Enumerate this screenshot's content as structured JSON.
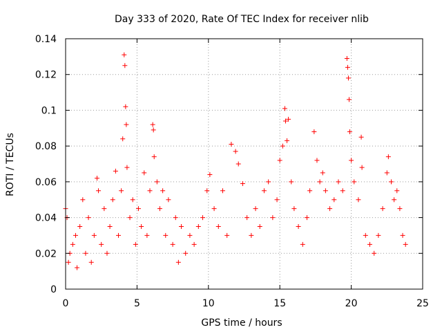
{
  "chart_data": {
    "type": "scatter",
    "title": "Day 333 of 2020, Rate Of TEC Index for receiver nlib",
    "xlabel": "GPS time / hours",
    "ylabel": "ROTI / TECUs",
    "xlim": [
      0,
      25
    ],
    "ylim": [
      0,
      0.14
    ],
    "xticks": [
      0,
      5,
      10,
      15,
      20,
      25
    ],
    "xtick_labels": [
      "0",
      "5",
      "10",
      "15",
      "20",
      "25"
    ],
    "yticks": [
      0,
      0.02,
      0.04,
      0.06,
      0.08,
      0.1,
      0.12,
      0.14
    ],
    "ytick_labels": [
      "0",
      "0.02",
      "0.04",
      "0.06",
      "0.08",
      "0.1",
      "0.12",
      "0.14"
    ],
    "grid": true,
    "marker": "plus",
    "series": [
      {
        "name": "ROTI",
        "color": "#ff0000",
        "points": [
          [
            0.0,
            0.045
          ],
          [
            0.1,
            0.04
          ],
          [
            0.2,
            0.015
          ],
          [
            0.3,
            0.02
          ],
          [
            0.5,
            0.025
          ],
          [
            0.7,
            0.03
          ],
          [
            0.8,
            0.012
          ],
          [
            1.0,
            0.035
          ],
          [
            1.2,
            0.05
          ],
          [
            1.4,
            0.02
          ],
          [
            1.6,
            0.04
          ],
          [
            1.8,
            0.015
          ],
          [
            2.0,
            0.03
          ],
          [
            2.2,
            0.062
          ],
          [
            2.3,
            0.055
          ],
          [
            2.5,
            0.025
          ],
          [
            2.7,
            0.045
          ],
          [
            2.9,
            0.02
          ],
          [
            3.1,
            0.035
          ],
          [
            3.3,
            0.05
          ],
          [
            3.5,
            0.066
          ],
          [
            3.7,
            0.03
          ],
          [
            3.9,
            0.055
          ],
          [
            4.0,
            0.084
          ],
          [
            4.1,
            0.131
          ],
          [
            4.15,
            0.125
          ],
          [
            4.2,
            0.102
          ],
          [
            4.25,
            0.092
          ],
          [
            4.3,
            0.068
          ],
          [
            4.5,
            0.04
          ],
          [
            4.7,
            0.05
          ],
          [
            4.9,
            0.025
          ],
          [
            5.1,
            0.045
          ],
          [
            5.3,
            0.035
          ],
          [
            5.5,
            0.065
          ],
          [
            5.7,
            0.03
          ],
          [
            5.9,
            0.055
          ],
          [
            6.1,
            0.092
          ],
          [
            6.15,
            0.089
          ],
          [
            6.2,
            0.074
          ],
          [
            6.4,
            0.06
          ],
          [
            6.6,
            0.045
          ],
          [
            6.8,
            0.055
          ],
          [
            7.0,
            0.03
          ],
          [
            7.2,
            0.05
          ],
          [
            7.5,
            0.025
          ],
          [
            7.7,
            0.04
          ],
          [
            7.9,
            0.015
          ],
          [
            8.1,
            0.035
          ],
          [
            8.4,
            0.02
          ],
          [
            8.7,
            0.03
          ],
          [
            9.0,
            0.025
          ],
          [
            9.3,
            0.035
          ],
          [
            9.6,
            0.04
          ],
          [
            9.9,
            0.055
          ],
          [
            10.1,
            0.064
          ],
          [
            10.4,
            0.045
          ],
          [
            10.7,
            0.035
          ],
          [
            11.0,
            0.055
          ],
          [
            11.3,
            0.03
          ],
          [
            11.6,
            0.081
          ],
          [
            11.9,
            0.077
          ],
          [
            12.1,
            0.07
          ],
          [
            12.4,
            0.059
          ],
          [
            12.7,
            0.04
          ],
          [
            13.0,
            0.03
          ],
          [
            13.3,
            0.045
          ],
          [
            13.6,
            0.035
          ],
          [
            13.9,
            0.055
          ],
          [
            14.2,
            0.06
          ],
          [
            14.5,
            0.04
          ],
          [
            14.8,
            0.05
          ],
          [
            15.0,
            0.072
          ],
          [
            15.2,
            0.08
          ],
          [
            15.35,
            0.101
          ],
          [
            15.4,
            0.094
          ],
          [
            15.5,
            0.083
          ],
          [
            15.6,
            0.095
          ],
          [
            15.8,
            0.06
          ],
          [
            16.0,
            0.045
          ],
          [
            16.3,
            0.035
          ],
          [
            16.6,
            0.025
          ],
          [
            16.9,
            0.04
          ],
          [
            17.1,
            0.055
          ],
          [
            17.4,
            0.088
          ],
          [
            17.6,
            0.072
          ],
          [
            17.8,
            0.06
          ],
          [
            18.0,
            0.065
          ],
          [
            18.2,
            0.055
          ],
          [
            18.5,
            0.045
          ],
          [
            18.8,
            0.05
          ],
          [
            19.1,
            0.06
          ],
          [
            19.4,
            0.055
          ],
          [
            19.7,
            0.129
          ],
          [
            19.75,
            0.124
          ],
          [
            19.8,
            0.118
          ],
          [
            19.85,
            0.106
          ],
          [
            19.9,
            0.088
          ],
          [
            20.0,
            0.072
          ],
          [
            20.2,
            0.06
          ],
          [
            20.5,
            0.05
          ],
          [
            20.7,
            0.085
          ],
          [
            20.75,
            0.068
          ],
          [
            21.0,
            0.03
          ],
          [
            21.3,
            0.025
          ],
          [
            21.6,
            0.02
          ],
          [
            21.9,
            0.03
          ],
          [
            22.2,
            0.045
          ],
          [
            22.5,
            0.065
          ],
          [
            22.6,
            0.074
          ],
          [
            22.8,
            0.06
          ],
          [
            23.0,
            0.05
          ],
          [
            23.2,
            0.055
          ],
          [
            23.4,
            0.045
          ],
          [
            23.6,
            0.03
          ],
          [
            23.8,
            0.025
          ]
        ]
      }
    ]
  }
}
